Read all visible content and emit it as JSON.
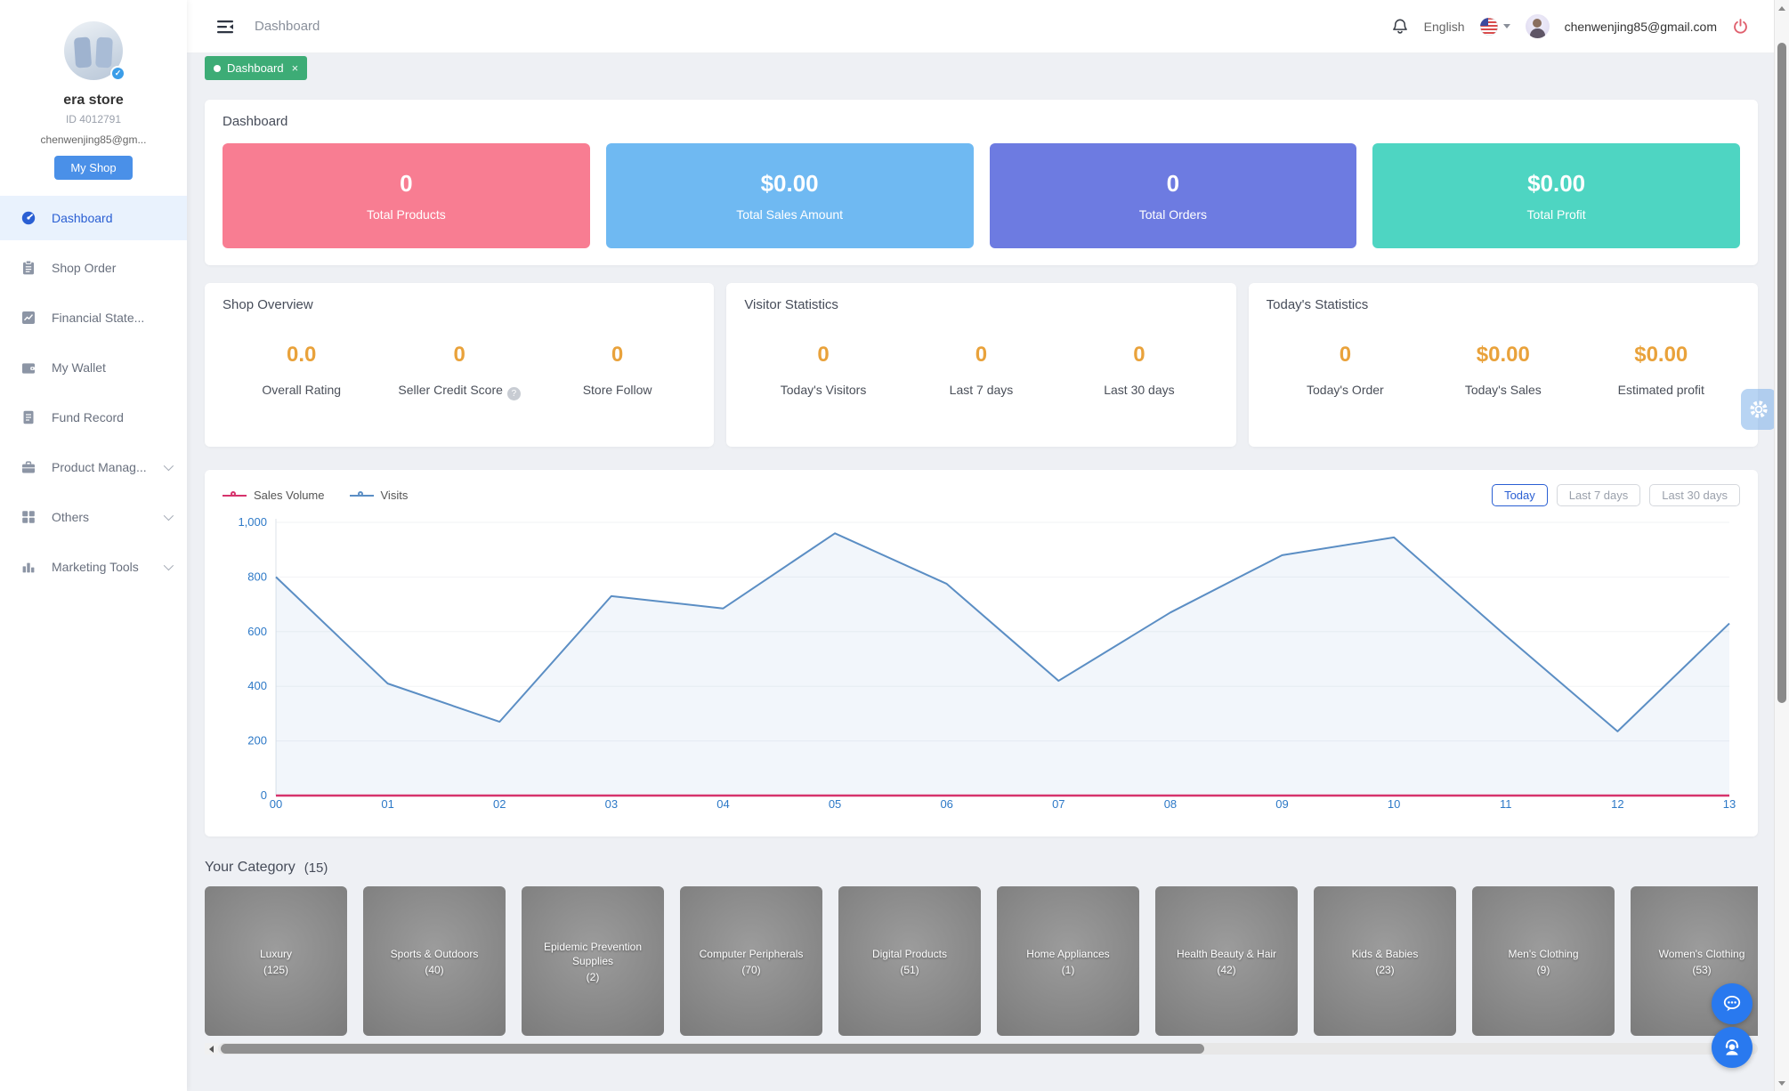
{
  "header": {
    "breadcrumb": "Dashboard",
    "language": "English",
    "user_email": "chenwenjing85@gmail.com"
  },
  "tab": {
    "label": "Dashboard",
    "close_icon": "×"
  },
  "sidebar": {
    "store_name": "era store",
    "store_id": "ID 4012791",
    "store_email": "chenwenjing85@gm...",
    "my_shop_label": "My Shop",
    "verified_glyph": "✓",
    "items": [
      {
        "label": "Dashboard",
        "icon": "gauge-icon",
        "active": true,
        "expandable": false
      },
      {
        "label": "Shop Order",
        "icon": "clipboard-icon",
        "active": false,
        "expandable": false
      },
      {
        "label": "Financial State...",
        "icon": "chart-icon",
        "active": false,
        "expandable": false
      },
      {
        "label": "My Wallet",
        "icon": "wallet-icon",
        "active": false,
        "expandable": false
      },
      {
        "label": "Fund Record",
        "icon": "document-icon",
        "active": false,
        "expandable": false
      },
      {
        "label": "Product Manag...",
        "icon": "briefcase-icon",
        "active": false,
        "expandable": true
      },
      {
        "label": "Others",
        "icon": "grid-icon",
        "active": false,
        "expandable": true
      },
      {
        "label": "Marketing Tools",
        "icon": "bars-icon",
        "active": false,
        "expandable": true
      }
    ]
  },
  "overview": {
    "title": "Dashboard",
    "cards": [
      {
        "value": "0",
        "label": "Total Products",
        "color": "#F87D92"
      },
      {
        "value": "$0.00",
        "label": "Total Sales Amount",
        "color": "#6FB9F2"
      },
      {
        "value": "0",
        "label": "Total Orders",
        "color": "#6D7BE1"
      },
      {
        "value": "$0.00",
        "label": "Total Profit",
        "color": "#4ED5C2"
      }
    ]
  },
  "stat_sections": [
    {
      "title": "Shop Overview",
      "help_glyph": "?",
      "metrics": [
        {
          "value": "0.0",
          "label": "Overall Rating",
          "help": false
        },
        {
          "value": "0",
          "label": "Seller Credit Score",
          "help": true
        },
        {
          "value": "0",
          "label": "Store Follow",
          "help": false
        }
      ]
    },
    {
      "title": "Visitor Statistics",
      "help_glyph": "?",
      "metrics": [
        {
          "value": "0",
          "label": "Today's Visitors",
          "help": false
        },
        {
          "value": "0",
          "label": "Last 7 days",
          "help": false
        },
        {
          "value": "0",
          "label": "Last 30 days",
          "help": false
        }
      ]
    },
    {
      "title": "Today's Statistics",
      "help_glyph": "?",
      "metrics": [
        {
          "value": "0",
          "label": "Today's Order",
          "help": false
        },
        {
          "value": "$0.00",
          "label": "Today's Sales",
          "help": false
        },
        {
          "value": "$0.00",
          "label": "Estimated profit",
          "help": false
        }
      ]
    }
  ],
  "chart_card": {
    "range_buttons": [
      {
        "label": "Today",
        "active": true
      },
      {
        "label": "Last 7 days",
        "active": false
      },
      {
        "label": "Last 30 days",
        "active": false
      }
    ]
  },
  "chart_data": {
    "type": "line",
    "title": "",
    "categories": [
      "00",
      "01",
      "02",
      "03",
      "04",
      "05",
      "06",
      "07",
      "08",
      "09",
      "10",
      "11",
      "12",
      "13"
    ],
    "series": [
      {
        "name": "Sales Volume",
        "color": "#D6336C",
        "area": false,
        "values": [
          0,
          0,
          0,
          0,
          0,
          0,
          0,
          0,
          0,
          0,
          0,
          0,
          0,
          0
        ]
      },
      {
        "name": "Visits",
        "color": "#5B8EC4",
        "area": true,
        "values": [
          800,
          410,
          270,
          730,
          685,
          960,
          775,
          420,
          670,
          880,
          945,
          585,
          235,
          630
        ]
      }
    ],
    "xlabel": "",
    "ylabel": "",
    "ylim": [
      0,
      1000
    ],
    "ytick_step": 200,
    "grid": true,
    "legend_position": "top-left",
    "tick_color": "#2d79c7"
  },
  "category": {
    "title": "Your Category",
    "count": "(15)",
    "items": [
      {
        "name": "Luxury",
        "count": "(125)"
      },
      {
        "name": "Sports & Outdoors",
        "count": "(40)"
      },
      {
        "name": "Epidemic Prevention Supplies",
        "count": "(2)"
      },
      {
        "name": "Computer Peripherals",
        "count": "(70)"
      },
      {
        "name": "Digital Products",
        "count": "(51)"
      },
      {
        "name": "Home Appliances",
        "count": "(1)"
      },
      {
        "name": "Health Beauty & Hair",
        "count": "(42)"
      },
      {
        "name": "Kids & Babies",
        "count": "(23)"
      },
      {
        "name": "Men's Clothing",
        "count": "(9)"
      },
      {
        "name": "Women's Clothing",
        "count": "(53)"
      }
    ]
  }
}
